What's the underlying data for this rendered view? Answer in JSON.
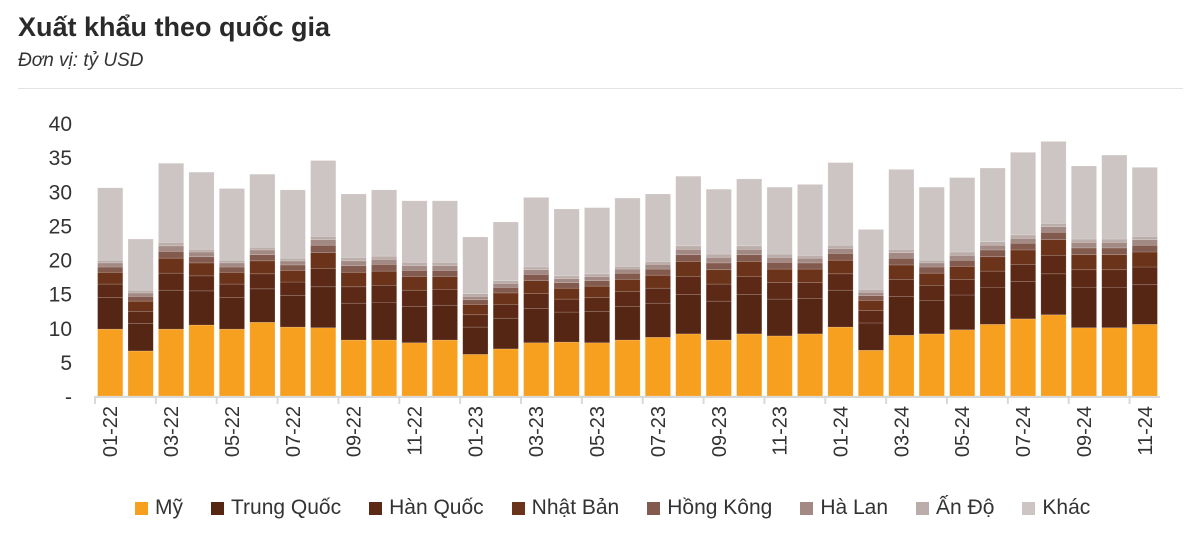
{
  "chart_data": {
    "type": "bar",
    "stacked": true,
    "title": "Xuất khẩu theo quốc gia",
    "subtitle": "Đơn vị: tỷ USD",
    "xlabel": "",
    "ylabel": "",
    "ylim": [
      0,
      40
    ],
    "yticks": [
      0,
      5,
      10,
      15,
      20,
      25,
      30,
      35,
      40
    ],
    "ytick_labels": [
      "-",
      "5",
      "10",
      "15",
      "20",
      "25",
      "30",
      "35",
      "40"
    ],
    "legend_position": "bottom",
    "categories": [
      "01-22",
      "02-22",
      "03-22",
      "04-22",
      "05-22",
      "06-22",
      "07-22",
      "08-22",
      "09-22",
      "10-22",
      "11-22",
      "12-22",
      "01-23",
      "02-23",
      "03-23",
      "04-23",
      "05-23",
      "06-23",
      "07-23",
      "08-23",
      "09-23",
      "10-23",
      "11-23",
      "12-23",
      "01-24",
      "02-24",
      "03-24",
      "04-24",
      "05-24",
      "06-24",
      "07-24",
      "08-24",
      "09-24",
      "10-24",
      "11-24"
    ],
    "xtick_labels": [
      "01-22",
      "03-22",
      "05-22",
      "07-22",
      "09-22",
      "11-22",
      "01-23",
      "03-23",
      "05-23",
      "07-23",
      "09-23",
      "11-23",
      "01-24",
      "03-24",
      "05-24",
      "07-24",
      "09-24",
      "11-24"
    ],
    "series": [
      {
        "name": "Mỹ",
        "color": "#F7A020",
        "values": [
          9.8,
          6.6,
          9.8,
          10.4,
          9.8,
          10.8,
          10.1,
          10.0,
          8.2,
          8.2,
          7.8,
          8.2,
          6.1,
          6.9,
          7.8,
          7.9,
          7.8,
          8.2,
          8.6,
          9.1,
          8.2,
          9.1,
          8.8,
          9.1,
          10.1,
          6.7,
          8.9,
          9.1,
          9.7,
          10.5,
          11.3,
          11.9,
          10.0,
          10.0,
          10.5
        ]
      },
      {
        "name": "Trung Quốc",
        "color": "#562614",
        "values": [
          4.6,
          4.0,
          5.7,
          5.0,
          4.6,
          4.9,
          4.6,
          6.0,
          5.4,
          5.5,
          5.3,
          5.1,
          4.0,
          4.5,
          5.0,
          4.4,
          4.6,
          4.9,
          5.0,
          5.8,
          5.7,
          5.8,
          5.4,
          5.2,
          5.4,
          4.0,
          5.7,
          4.9,
          5.1,
          5.4,
          5.5,
          6.0,
          5.9,
          5.9,
          5.8
        ]
      },
      {
        "name": "Hàn Quốc",
        "color": "#5C2916",
        "values": [
          2.0,
          1.8,
          2.5,
          2.2,
          2.0,
          2.2,
          2.0,
          2.7,
          2.4,
          2.5,
          2.4,
          2.3,
          1.8,
          2.0,
          2.2,
          1.9,
          2.0,
          2.2,
          2.2,
          2.6,
          2.5,
          2.6,
          2.4,
          2.3,
          2.4,
          1.8,
          2.5,
          2.2,
          2.3,
          2.4,
          2.5,
          2.7,
          2.6,
          2.6,
          2.6
        ]
      },
      {
        "name": "Nhật Bản",
        "color": "#6B3319",
        "values": [
          1.7,
          1.5,
          2.2,
          1.9,
          1.7,
          1.9,
          1.7,
          2.3,
          2.1,
          2.1,
          2.0,
          1.9,
          1.5,
          1.7,
          1.9,
          1.6,
          1.7,
          1.8,
          1.9,
          2.2,
          2.1,
          2.2,
          2.0,
          2.0,
          2.0,
          1.5,
          2.1,
          1.8,
          1.9,
          2.1,
          2.1,
          2.3,
          2.2,
          2.2,
          2.2
        ]
      },
      {
        "name": "Hồng Kông",
        "color": "#835A4E",
        "values": [
          0.8,
          0.7,
          1.0,
          0.9,
          0.8,
          0.9,
          0.8,
          1.1,
          1.0,
          1.0,
          0.9,
          0.9,
          0.7,
          0.8,
          0.9,
          0.8,
          0.8,
          0.9,
          0.9,
          1.0,
          1.0,
          1.0,
          1.0,
          0.9,
          1.0,
          0.7,
          1.0,
          0.9,
          0.9,
          1.0,
          1.0,
          1.1,
          1.0,
          1.0,
          1.0
        ]
      },
      {
        "name": "Hà Lan",
        "color": "#A28983",
        "values": [
          0.6,
          0.5,
          0.8,
          0.7,
          0.6,
          0.7,
          0.6,
          0.8,
          0.7,
          0.7,
          0.7,
          0.7,
          0.5,
          0.6,
          0.7,
          0.6,
          0.6,
          0.6,
          0.7,
          0.8,
          0.8,
          0.8,
          0.7,
          0.7,
          0.7,
          0.5,
          0.8,
          0.6,
          0.7,
          0.7,
          0.7,
          0.8,
          0.8,
          0.8,
          0.8
        ]
      },
      {
        "name": "Ấn Độ",
        "color": "#BBADA9",
        "values": [
          0.4,
          0.4,
          0.5,
          0.4,
          0.4,
          0.4,
          0.4,
          0.5,
          0.5,
          0.5,
          0.5,
          0.5,
          0.4,
          0.4,
          0.4,
          0.4,
          0.4,
          0.4,
          0.4,
          0.5,
          0.5,
          0.5,
          0.5,
          0.4,
          0.5,
          0.4,
          0.5,
          0.4,
          0.5,
          0.5,
          0.5,
          0.5,
          0.5,
          0.5,
          0.5
        ]
      },
      {
        "name": "Khác",
        "color": "#CDC5C3",
        "values": [
          10.6,
          7.5,
          11.6,
          11.3,
          10.5,
          10.7,
          10.0,
          11.1,
          9.3,
          9.7,
          9.0,
          9.0,
          8.3,
          8.6,
          10.2,
          9.8,
          9.7,
          10.0,
          9.9,
          10.2,
          9.5,
          9.8,
          9.8,
          10.4,
          12.1,
          8.8,
          11.7,
          10.7,
          10.9,
          10.8,
          12.1,
          12.0,
          10.7,
          12.3,
          10.1
        ]
      }
    ]
  }
}
